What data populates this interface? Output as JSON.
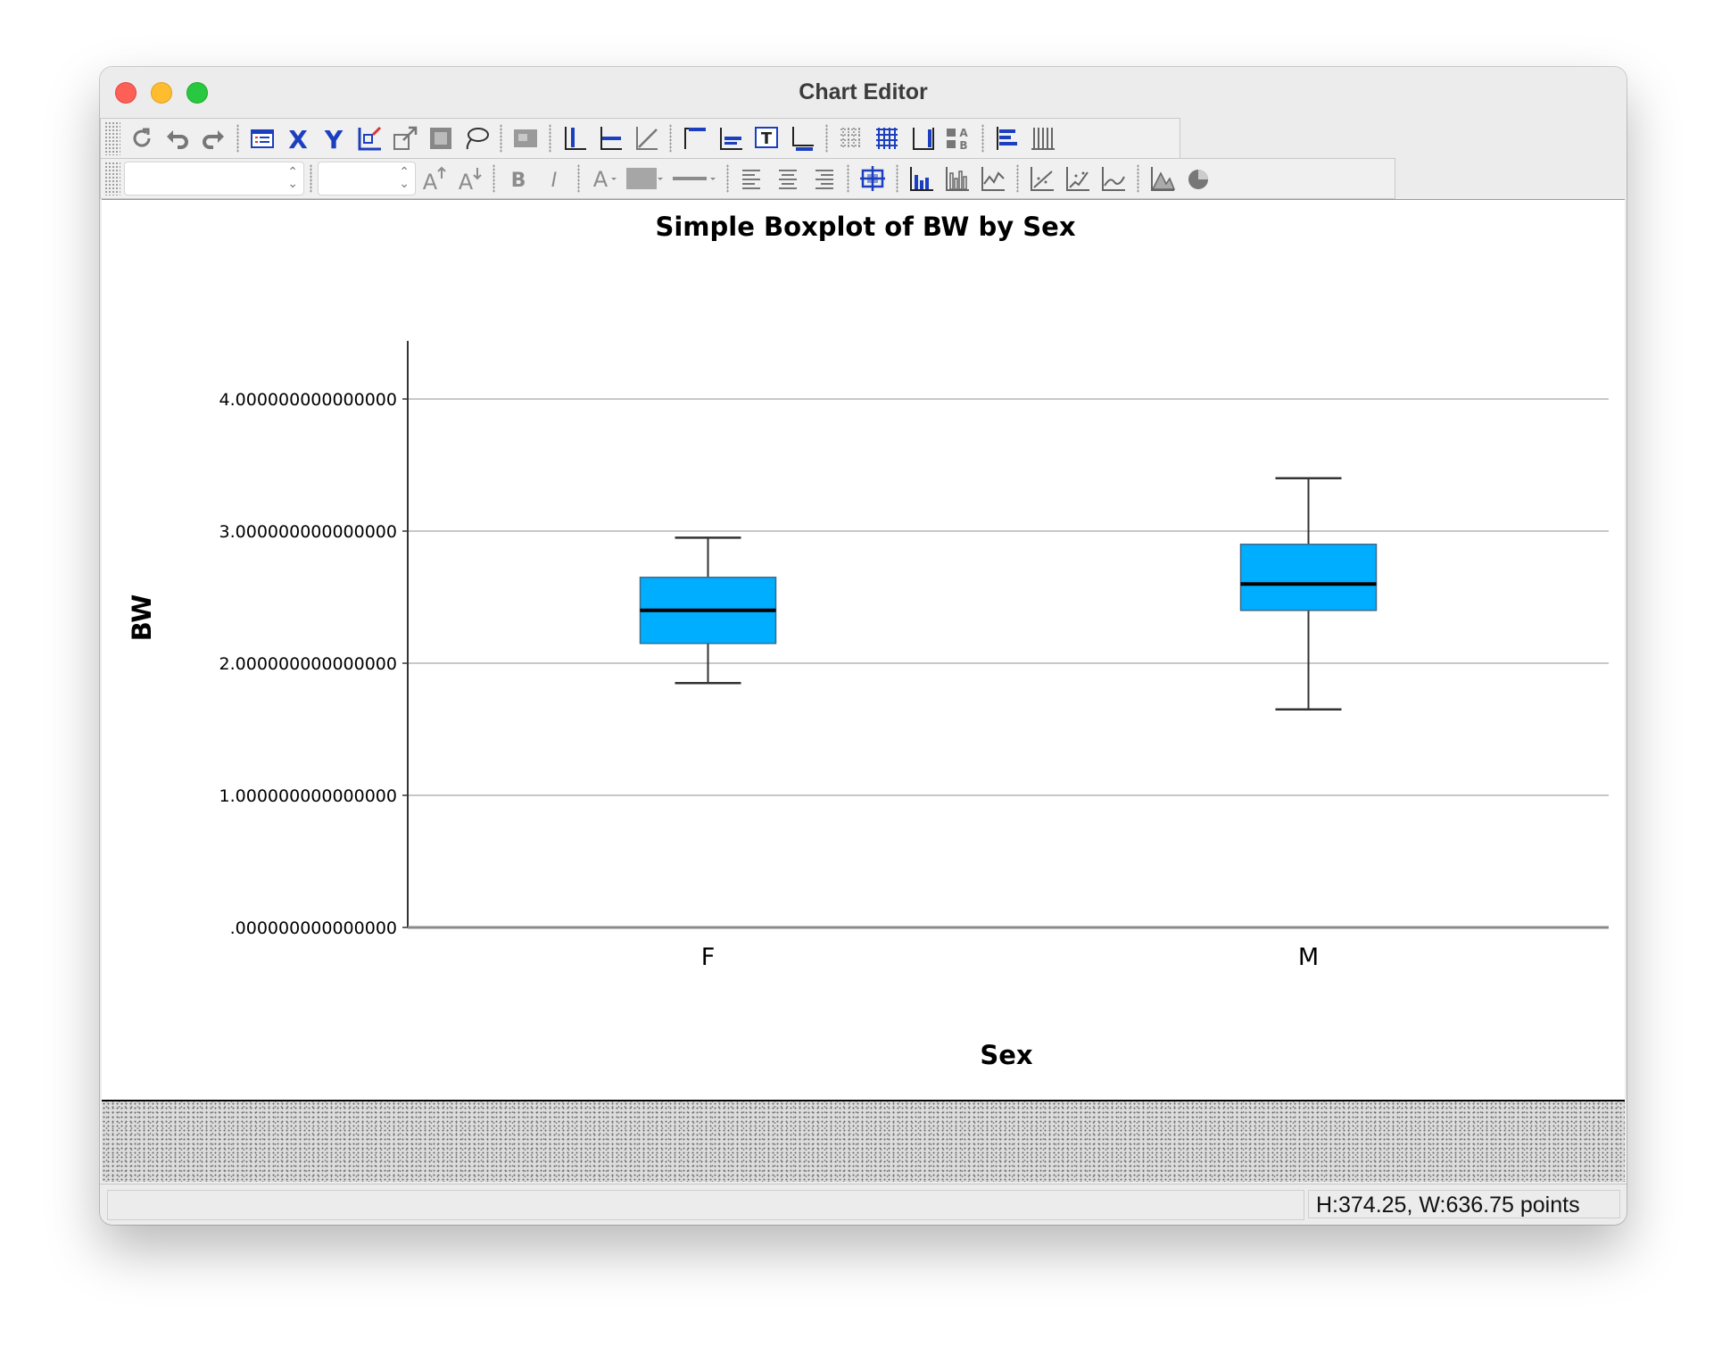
{
  "window": {
    "title": "Chart Editor",
    "status_left": "",
    "status_right": "H:374.25, W:636.75 points"
  },
  "toolbar1": {
    "icons": [
      "refresh-icon",
      "undo-icon",
      "redo-icon",
      "properties-icon",
      "x-axis-icon",
      "y-axis-icon",
      "select-data-icon",
      "rescale-icon",
      "frame-icon",
      "lasso-icon",
      "data-label-icon",
      "y-ref-line-icon",
      "x-ref-line-icon",
      "fit-line-icon",
      "title-icon",
      "annotation-icon",
      "textbox-icon",
      "footnote-icon",
      "grid-icon",
      "grid-lines-icon",
      "axis-lines-icon",
      "legend-icon",
      "transpose-icon",
      "bars-icon"
    ]
  },
  "toolbar2": {
    "font_name_value": "",
    "font_size_value": "",
    "icons": [
      "increase-font-icon",
      "decrease-font-icon",
      "bold-icon",
      "italic-icon",
      "text-color-icon",
      "fill-color-icon",
      "line-style-icon",
      "align-left-icon",
      "align-center-icon",
      "align-right-icon",
      "move-icon",
      "bar-chart-icon",
      "clustered-bar-icon",
      "line-chart-icon",
      "fit-line-icon",
      "interpolation-icon",
      "smooth-line-icon",
      "area-chart-icon",
      "pie-chart-icon"
    ]
  },
  "colors": {
    "box_fill": "#00aeff",
    "box_stroke": "#3a6a8a",
    "gridline": "#c8c8c8"
  },
  "chart_data": {
    "type": "boxplot",
    "title": "Simple Boxplot of BW by Sex",
    "xlabel": "Sex",
    "ylabel": "BW",
    "categories": [
      "F",
      "M"
    ],
    "boxes": [
      {
        "category": "F",
        "whisker_low": 1.85,
        "q1": 2.15,
        "median": 2.4,
        "q3": 2.65,
        "whisker_high": 2.95
      },
      {
        "category": "M",
        "whisker_low": 1.65,
        "q1": 2.4,
        "median": 2.6,
        "q3": 2.9,
        "whisker_high": 3.4
      }
    ],
    "y_ticks": [
      0,
      1,
      2,
      3,
      4
    ],
    "y_tick_labels": [
      ".000000000000000",
      "1.000000000000000",
      "2.000000000000000",
      "3.000000000000000",
      "4.000000000000000"
    ],
    "ylim": [
      0,
      4.44
    ],
    "grid": true
  }
}
